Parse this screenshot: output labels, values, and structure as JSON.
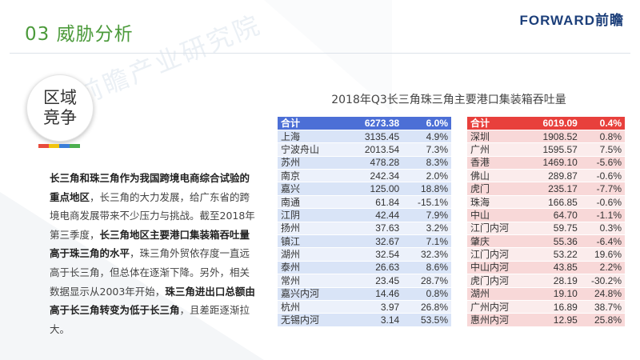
{
  "header": {
    "title": "03  威胁分析",
    "logo": "FORWARD前瞻"
  },
  "watermark": "前瞻产业研究院",
  "badge": {
    "text": "区域竞争"
  },
  "paragraph": {
    "b1": "长三角和珠三角作为我国跨境电商综合试验的重点地区",
    "t1": "，长三角的大力发展，给广东省的跨境电商发展带来不少压力与挑战。截至2018年第三季度，",
    "b2": "长三角地区主要港口集装箱吞吐量高于珠三角的水平",
    "t2": "，珠三角外贸依存度一直远高于长三角，但总体在逐渐下降。另外，相关数据显示从2003年开始，",
    "b3": "珠三角进出口总额由高于长三角转变为低于长三角",
    "t3": "，且差距逐渐拉大。"
  },
  "colors": {
    "title_green": "#4b9a3a",
    "left_header": "#4c6fd6",
    "right_header": "#e8403c",
    "badge_tick": [
      "#e84c3d",
      "#f1c40f",
      "#3b7dd8",
      "#4caf50"
    ]
  },
  "chart_data": {
    "type": "table",
    "title": "2018年Q3长三角珠三角主要港口集装箱吞吐量",
    "tables": [
      {
        "header": [
          "合计",
          "6273.38",
          "6.0%"
        ],
        "rows": [
          [
            "上海",
            "3135.45",
            "4.9%"
          ],
          [
            "宁波舟山",
            "2013.54",
            "7.3%"
          ],
          [
            "苏州",
            "478.28",
            "8.3%"
          ],
          [
            "南京",
            "242.34",
            "2.0%"
          ],
          [
            "嘉兴",
            "125.00",
            "18.8%"
          ],
          [
            "南通",
            "61.84",
            "-15.1%"
          ],
          [
            "江阴",
            "42.44",
            "7.9%"
          ],
          [
            "扬州",
            "37.63",
            "3.2%"
          ],
          [
            "镇江",
            "32.67",
            "7.1%"
          ],
          [
            "湖州",
            "32.54",
            "32.3%"
          ],
          [
            "泰州",
            "26.63",
            "8.6%"
          ],
          [
            "常州",
            "23.45",
            "28.7%"
          ],
          [
            "嘉兴内河",
            "14.46",
            "0.8%"
          ],
          [
            "杭州",
            "3.97",
            "26.8%"
          ],
          [
            "无锡内河",
            "3.14",
            "53.5%"
          ]
        ]
      },
      {
        "header": [
          "合计",
          "6019.09",
          "0.4%"
        ],
        "rows": [
          [
            "深圳",
            "1908.52",
            "0.8%"
          ],
          [
            "广州",
            "1595.57",
            "7.5%"
          ],
          [
            "香港",
            "1469.10",
            "-5.6%"
          ],
          [
            "佛山",
            "289.87",
            "-0.6%"
          ],
          [
            "虎门",
            "235.17",
            "-7.7%"
          ],
          [
            "珠海",
            "166.85",
            "-0.6%"
          ],
          [
            "中山",
            "64.70",
            "-1.1%"
          ],
          [
            "江门内河",
            "59.75",
            "0.3%"
          ],
          [
            "肇庆",
            "55.36",
            "-6.4%"
          ],
          [
            "江门内河",
            "53.22",
            "19.6%"
          ],
          [
            "中山内河",
            "43.85",
            "2.2%"
          ],
          [
            "虎门内河",
            "28.19",
            "-30.2%"
          ],
          [
            "湖州",
            "19.10",
            "24.8%"
          ],
          [
            "广州内河",
            "16.89",
            "38.7%"
          ],
          [
            "惠州内河",
            "12.95",
            "25.8%"
          ]
        ]
      }
    ]
  }
}
